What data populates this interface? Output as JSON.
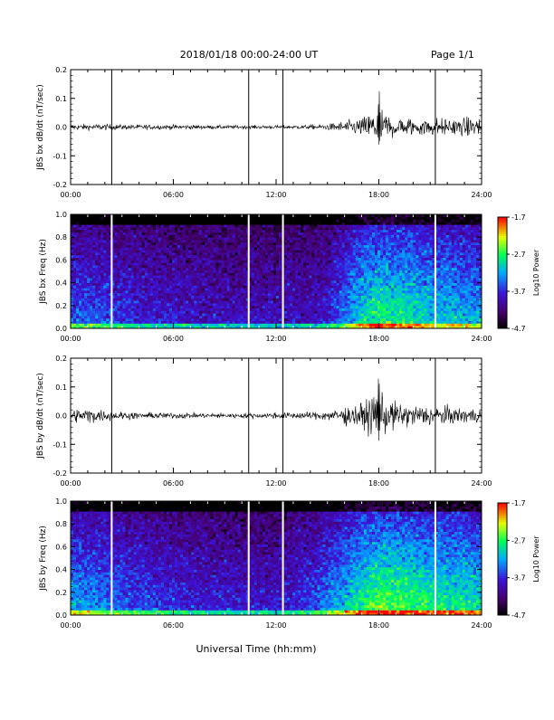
{
  "header": {
    "title": "2018/01/18  00:00-24:00 UT",
    "page": "Page 1/1"
  },
  "x_axis": {
    "label": "Universal Time (hh:mm)",
    "ticks": [
      "00:00",
      "06:00",
      "12:00",
      "18:00",
      "24:00"
    ]
  },
  "colorbar": {
    "label": "Log10 Power",
    "ticks": [
      "-1.7",
      "-2.7",
      "-3.7",
      "-4.7"
    ]
  },
  "colors": {
    "frame": "#000000",
    "trace": "#000000",
    "gap_line_ts": "#000000",
    "gap_line_spec": "#ffffff"
  },
  "chart_data": [
    {
      "type": "line",
      "id": "bx-timeseries",
      "ylabel": "JBS bx dB/dt (nT/sec)",
      "x_unit": "hours UT",
      "xlim": [
        0,
        24
      ],
      "ylim": [
        -0.2,
        0.2
      ],
      "y_ticks": [
        "0.2",
        "0.1",
        "0.0",
        "-0.1",
        "-0.2"
      ],
      "gap_markers_hours": [
        2.4,
        10.4,
        12.4,
        21.3
      ],
      "envelope": {
        "hours": [
          0,
          2,
          4,
          6,
          8,
          10,
          12,
          14,
          15,
          16,
          17,
          17.5,
          18,
          18.5,
          19,
          20,
          21,
          22,
          23,
          24
        ],
        "amplitude": [
          0.01,
          0.01,
          0.008,
          0.008,
          0.006,
          0.006,
          0.006,
          0.007,
          0.01,
          0.02,
          0.03,
          0.05,
          0.06,
          0.045,
          0.035,
          0.03,
          0.03,
          0.028,
          0.03,
          0.03
        ]
      },
      "spikes": [
        {
          "hour": 18.0,
          "max": 0.17,
          "min": -0.1
        }
      ]
    },
    {
      "type": "heatmap",
      "id": "bx-spectrogram",
      "ylabel": "JBS bx Freq (Hz)",
      "xlim": [
        0,
        24
      ],
      "ylim": [
        0,
        1.0
      ],
      "y_ticks": [
        "1.0",
        "0.8",
        "0.6",
        "0.4",
        "0.2",
        "0.0"
      ],
      "zlim": [
        -4.7,
        -1.7
      ],
      "gap_markers_hours": [
        2.4,
        10.4,
        12.4,
        21.3
      ],
      "activity_profile": {
        "hours": [
          0,
          2,
          4,
          6,
          8,
          10,
          12,
          14,
          15,
          16,
          17,
          18,
          19,
          20,
          21,
          22,
          23,
          24
        ],
        "level": [
          0.45,
          0.42,
          0.35,
          0.33,
          0.3,
          0.3,
          0.3,
          0.3,
          0.35,
          0.5,
          0.65,
          0.72,
          0.7,
          0.68,
          0.62,
          0.6,
          0.58,
          0.55
        ]
      }
    },
    {
      "type": "line",
      "id": "by-timeseries",
      "ylabel": "JBS by dB/dt (nT/sec)",
      "x_unit": "hours UT",
      "xlim": [
        0,
        24
      ],
      "ylim": [
        -0.2,
        0.2
      ],
      "y_ticks": [
        "0.2",
        "0.1",
        "0.0",
        "-0.1",
        "-0.2"
      ],
      "gap_markers_hours": [
        2.4,
        10.4,
        12.4,
        21.3
      ],
      "envelope": {
        "hours": [
          0,
          1,
          2,
          4,
          6,
          8,
          10,
          12,
          14,
          15,
          16,
          17,
          17.5,
          18,
          18.5,
          19,
          20,
          21,
          22,
          23,
          24
        ],
        "amplitude": [
          0.02,
          0.025,
          0.018,
          0.01,
          0.01,
          0.008,
          0.008,
          0.01,
          0.012,
          0.015,
          0.03,
          0.04,
          0.06,
          0.07,
          0.055,
          0.045,
          0.035,
          0.035,
          0.03,
          0.025,
          0.025
        ]
      },
      "spikes": [
        {
          "hour": 18.0,
          "max": 0.19,
          "min": -0.11
        }
      ]
    },
    {
      "type": "heatmap",
      "id": "by-spectrogram",
      "ylabel": "JBS by Freq (Hz)",
      "xlim": [
        0,
        24
      ],
      "ylim": [
        0,
        1.0
      ],
      "y_ticks": [
        "1.0",
        "0.8",
        "0.6",
        "0.4",
        "0.2",
        "0.0"
      ],
      "zlim": [
        -4.7,
        -1.7
      ],
      "gap_markers_hours": [
        2.4,
        10.4,
        12.4,
        21.3
      ],
      "activity_profile": {
        "hours": [
          0,
          2,
          4,
          6,
          8,
          10,
          12,
          14,
          15,
          16,
          17,
          18,
          19,
          20,
          21,
          22,
          23,
          24
        ],
        "level": [
          0.55,
          0.5,
          0.42,
          0.38,
          0.35,
          0.33,
          0.33,
          0.4,
          0.5,
          0.6,
          0.72,
          0.78,
          0.78,
          0.75,
          0.72,
          0.7,
          0.68,
          0.65
        ]
      }
    }
  ]
}
